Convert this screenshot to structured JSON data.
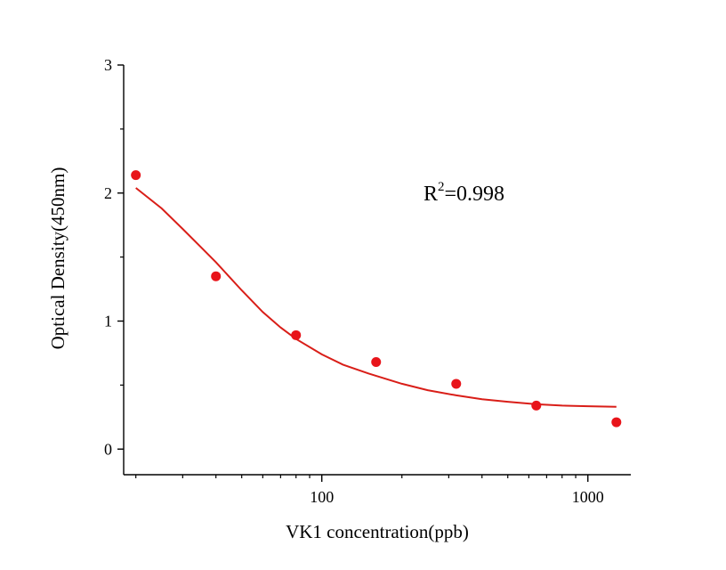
{
  "chart_data": {
    "type": "scatter",
    "title": "",
    "xlabel": "VK1  concentration(ppb)",
    "ylabel": "Optical Density(450nm)",
    "x_scale": "log",
    "xlim": [
      18,
      1450
    ],
    "ylim": [
      -0.2,
      3.0
    ],
    "x_ticks": [
      100,
      1000
    ],
    "x_tick_labels": [
      "100",
      "1000"
    ],
    "y_ticks": [
      0,
      1,
      2,
      3
    ],
    "y_tick_labels": [
      "0",
      "1",
      "2",
      "3"
    ],
    "grid": false,
    "legend": "none",
    "series": [
      {
        "type": "scatter",
        "x": [
          20,
          40,
          80,
          160,
          320,
          640,
          1280
        ],
        "y": [
          2.14,
          1.35,
          0.89,
          0.68,
          0.51,
          0.34,
          0.21
        ]
      },
      {
        "type": "line",
        "x": [
          20,
          25,
          30,
          35,
          40,
          50,
          60,
          70,
          80,
          100,
          120,
          150,
          200,
          250,
          320,
          400,
          500,
          640,
          800,
          1000,
          1280
        ],
        "y": [
          2.04,
          1.88,
          1.72,
          1.58,
          1.46,
          1.24,
          1.07,
          0.95,
          0.86,
          0.74,
          0.66,
          0.59,
          0.51,
          0.46,
          0.42,
          0.39,
          0.37,
          0.35,
          0.34,
          0.335,
          0.33
        ]
      }
    ],
    "colors": {
      "points": "#e8141a",
      "fit_line": "#d91e18",
      "axis": "#000000"
    },
    "annotation": {
      "prefix": "R",
      "superscript": "2",
      "value": "=0.998"
    }
  }
}
